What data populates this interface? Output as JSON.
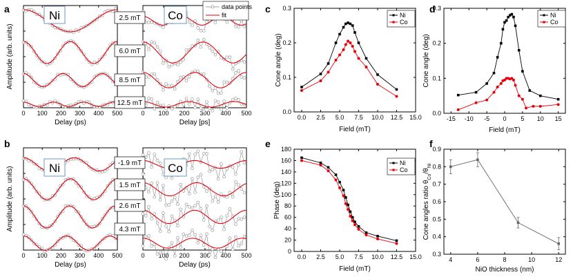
{
  "panel_letters": {
    "a": "a",
    "b": "b",
    "c": "c",
    "d": "d",
    "e": "e",
    "f": "f"
  },
  "ab_panels": {
    "ylabel": "Amplitude (arb. units)",
    "xlabel_ni": "Delay (ps)",
    "xlabel_co": "Delay [ps]",
    "element_ni": "Ni",
    "element_co": "Co",
    "legend": {
      "points": "data points",
      "fit": "fit"
    },
    "a_fields": [
      "2.5 mT",
      "6.0 mT",
      "8.5 mT",
      "12.5 mT"
    ],
    "b_fields": [
      "-1.9 mT",
      "1.5 mT",
      "2.6 mT",
      "4.3 mT"
    ]
  },
  "colors": {
    "ni": "#000000",
    "co": "#e8000b",
    "fit": "#e8000b",
    "data": "#888888",
    "error": "#4a9fd6"
  },
  "chart_data": [
    {
      "id": "a-Ni",
      "type": "line",
      "title": "Ni",
      "xlabel": "Delay (ps)",
      "ylabel": "Amplitude (arb. units)",
      "xlim": [
        0,
        500
      ],
      "xticks": [
        0,
        100,
        200,
        300,
        400,
        500
      ],
      "series": [
        {
          "name": "2.5 mT",
          "periods_ps": 500,
          "amplitude": 1.0
        },
        {
          "name": "6.0 mT",
          "periods_ps": 250,
          "amplitude": 1.0
        },
        {
          "name": "8.5 mT",
          "periods_ps": 210,
          "amplitude": 0.6
        },
        {
          "name": "12.5 mT",
          "periods_ps": 160,
          "amplitude": 0.2
        }
      ]
    },
    {
      "id": "a-Co",
      "type": "line",
      "title": "Co",
      "xlabel": "Delay [ps]",
      "xlim": [
        0,
        500
      ],
      "xticks": [
        0,
        100,
        200,
        300,
        400,
        500
      ],
      "legend": [
        "data points",
        "fit"
      ],
      "series": [
        {
          "name": "2.5 mT",
          "periods_ps": 190,
          "amplitude": 0.4
        },
        {
          "name": "6.0 mT",
          "periods_ps": 290,
          "amplitude": 0.95
        },
        {
          "name": "8.5 mT",
          "periods_ps": 250,
          "amplitude": 0.7
        },
        {
          "name": "12.5 mT",
          "periods_ps": 220,
          "amplitude": 0.25
        }
      ]
    },
    {
      "id": "b-Ni",
      "type": "line",
      "title": "Ni",
      "xlabel": "Delay (ps)",
      "ylabel": "Amplitude (arb. units)",
      "xlim": [
        0,
        500
      ],
      "xticks": [
        0,
        100,
        200,
        300,
        400,
        500
      ],
      "series": [
        {
          "name": "-1.9 mT",
          "periods_ps": 270,
          "amplitude": 0.6
        },
        {
          "name": "1.5 mT",
          "periods_ps": 250,
          "amplitude": 0.95
        },
        {
          "name": "2.6 mT",
          "periods_ps": 245,
          "amplitude": 1.0
        },
        {
          "name": "4.3 mT",
          "periods_ps": 230,
          "amplitude": 0.65
        }
      ]
    },
    {
      "id": "b-Co",
      "type": "line",
      "title": "Co",
      "xlabel": "Delay (ps)",
      "xlim": [
        0,
        500
      ],
      "xticks": [
        0,
        100,
        200,
        300,
        400,
        500
      ],
      "series": [
        {
          "name": "-1.9 mT",
          "periods_ps": 250,
          "amplitude": 0.35
        },
        {
          "name": "1.5 mT",
          "periods_ps": 260,
          "amplitude": 0.6
        },
        {
          "name": "2.6 mT",
          "periods_ps": 250,
          "amplitude": 0.6
        },
        {
          "name": "4.3 mT",
          "periods_ps": 240,
          "amplitude": 0.45
        }
      ]
    },
    {
      "id": "c",
      "type": "line",
      "xlabel": "Field (mT)",
      "ylabel": "Cone angle (deg)",
      "xlim": [
        -1,
        15
      ],
      "ylim": [
        0,
        0.3
      ],
      "xticks": [
        0.0,
        2.5,
        5.0,
        7.5,
        10.0,
        12.5,
        15.0
      ],
      "xtick_labels": [
        "0.0",
        "2.5",
        "5.0",
        "7.5",
        "10.0",
        "12.5",
        "15.0"
      ],
      "yticks": [
        0.0,
        0.1,
        0.2,
        0.3
      ],
      "ytick_labels": [
        "0.0",
        "0.1",
        "0.2",
        "0.3"
      ],
      "series": [
        {
          "name": "Ni",
          "x": [
            0,
            2.5,
            3.5,
            4.5,
            5.0,
            5.5,
            5.8,
            6.1,
            6.4,
            6.7,
            7.0,
            7.5,
            8.5,
            10.0,
            12.5
          ],
          "y": [
            0.072,
            0.11,
            0.14,
            0.2,
            0.225,
            0.245,
            0.255,
            0.258,
            0.255,
            0.25,
            0.23,
            0.2,
            0.155,
            0.108,
            0.065
          ]
        },
        {
          "name": "Co",
          "x": [
            0,
            2.5,
            3.5,
            4.5,
            5.0,
            5.5,
            5.8,
            6.1,
            6.4,
            6.7,
            7.0,
            7.5,
            8.5,
            10.0,
            12.5
          ],
          "y": [
            0.062,
            0.09,
            0.115,
            0.15,
            0.165,
            0.18,
            0.195,
            0.205,
            0.2,
            0.19,
            0.175,
            0.155,
            0.13,
            0.08,
            0.045
          ]
        }
      ]
    },
    {
      "id": "d",
      "type": "line",
      "xlabel": "Field (mT)",
      "ylabel": "Cone angle (deg)",
      "xlim": [
        -17,
        17
      ],
      "ylim": [
        0,
        0.3
      ],
      "xticks": [
        -15,
        -10,
        -5,
        0,
        5,
        10,
        15
      ],
      "xtick_labels": [
        "-15",
        "-10",
        "-5",
        "0",
        "5",
        "10",
        "15"
      ],
      "yticks": [
        0.0,
        0.1,
        0.2,
        0.3
      ],
      "ytick_labels": [
        "0.0",
        "0.1",
        "0.2",
        "0.3"
      ],
      "series": [
        {
          "name": "Ni",
          "x": [
            -13,
            -8,
            -5,
            -3,
            -2,
            -1,
            -0.5,
            0,
            0.5,
            1,
            1.5,
            2,
            2.5,
            3,
            4,
            5,
            7,
            10,
            15
          ],
          "y": [
            0.052,
            0.06,
            0.085,
            0.115,
            0.16,
            0.2,
            0.24,
            0.26,
            0.265,
            0.275,
            0.28,
            0.283,
            0.275,
            0.25,
            0.18,
            0.12,
            0.065,
            0.05,
            0.04
          ]
        },
        {
          "name": "Co",
          "x": [
            -13,
            -8,
            -5,
            -3,
            -2,
            -1,
            -0.5,
            0,
            0.5,
            1,
            1.5,
            2,
            2.5,
            3,
            4,
            5,
            6,
            8,
            10,
            15
          ],
          "y": [
            0.01,
            0.03,
            0.038,
            0.06,
            0.075,
            0.085,
            0.093,
            0.095,
            0.1,
            0.1,
            0.098,
            0.1,
            0.095,
            0.08,
            0.05,
            0.04,
            0.015,
            0.02,
            0.02,
            0.025
          ]
        }
      ]
    },
    {
      "id": "e",
      "type": "line",
      "xlabel": "Field (mT)",
      "ylabel": "Phase (deg)",
      "xlim": [
        -1,
        15
      ],
      "ylim": [
        0,
        180
      ],
      "xticks": [
        0.0,
        2.5,
        5.0,
        7.5,
        10.0,
        12.5,
        15.0
      ],
      "xtick_labels": [
        "0.0",
        "2.5",
        "5.0",
        "7.5",
        "10.0",
        "12.5",
        "15.0"
      ],
      "yticks": [
        0,
        20,
        40,
        60,
        80,
        100,
        120,
        140,
        160,
        180
      ],
      "series": [
        {
          "name": "Ni",
          "x": [
            0,
            2.5,
            3.5,
            4.5,
            5.0,
            5.5,
            5.8,
            6.1,
            6.4,
            6.7,
            7.0,
            7.5,
            8.5,
            10.0,
            12.5
          ],
          "y": [
            165,
            156,
            148,
            135,
            122,
            108,
            95,
            82,
            70,
            60,
            52,
            44,
            33,
            27,
            19
          ]
        },
        {
          "name": "Co",
          "x": [
            0,
            2.5,
            3.5,
            4.5,
            5.0,
            5.5,
            5.8,
            6.1,
            6.4,
            6.7,
            7.0,
            7.5,
            8.5,
            10.0,
            12.5
          ],
          "y": [
            160,
            152,
            142,
            126,
            112,
            98,
            84,
            74,
            62,
            54,
            47,
            39,
            29,
            22,
            14
          ]
        }
      ]
    },
    {
      "id": "f",
      "type": "line",
      "xlabel": "NiO thickness (nm)",
      "ylabel_prefix": "Cone angles ratio θ",
      "ylabel_sub1": "Co",
      "ylabel_mid": "/θ",
      "ylabel_sub2": "Ni",
      "xlim": [
        3.5,
        12.5
      ],
      "ylim": [
        0.3,
        0.9
      ],
      "xticks": [
        4,
        6,
        8,
        10,
        12
      ],
      "xtick_labels": [
        "4",
        "6",
        "8",
        "10",
        "12"
      ],
      "yticks": [
        0.3,
        0.4,
        0.5,
        0.6,
        0.7,
        0.8,
        0.9
      ],
      "ytick_labels": [
        "0.3",
        "0.4",
        "0.5",
        "0.6",
        "0.7",
        "0.8",
        "0.9"
      ],
      "series": [
        {
          "name": "ratio",
          "x": [
            4,
            6,
            9,
            12
          ],
          "y": [
            0.8,
            0.84,
            0.48,
            0.36
          ],
          "err": [
            0.04,
            0.04,
            0.03,
            0.035
          ]
        }
      ]
    }
  ]
}
